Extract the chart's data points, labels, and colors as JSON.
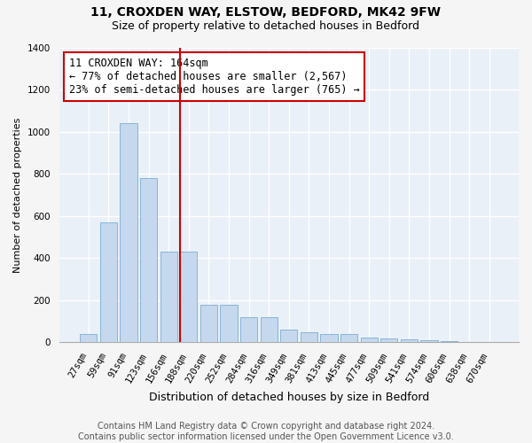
{
  "title_line1": "11, CROXDEN WAY, ELSTOW, BEDFORD, MK42 9FW",
  "title_line2": "Size of property relative to detached houses in Bedford",
  "xlabel": "Distribution of detached houses by size in Bedford",
  "ylabel": "Number of detached properties",
  "categories": [
    "27sqm",
    "59sqm",
    "91sqm",
    "123sqm",
    "156sqm",
    "188sqm",
    "220sqm",
    "252sqm",
    "284sqm",
    "316sqm",
    "349sqm",
    "381sqm",
    "413sqm",
    "445sqm",
    "477sqm",
    "509sqm",
    "541sqm",
    "574sqm",
    "606sqm",
    "638sqm",
    "670sqm"
  ],
  "values": [
    40,
    570,
    1040,
    780,
    430,
    430,
    178,
    178,
    120,
    120,
    60,
    50,
    40,
    40,
    25,
    20,
    15,
    10,
    5,
    4,
    2
  ],
  "bar_color": "#c5d8ee",
  "bar_edge_color": "#7aadd4",
  "bar_width": 0.85,
  "vline_color": "#cc0000",
  "vline_x": 4.55,
  "annotation_text": "11 CROXDEN WAY: 164sqm\n← 77% of detached houses are smaller (2,567)\n23% of semi-detached houses are larger (765) →",
  "annotation_box_color": "#ffffff",
  "annotation_box_edge": "#cc0000",
  "ylim": [
    0,
    1400
  ],
  "yticks": [
    0,
    200,
    400,
    600,
    800,
    1000,
    1200,
    1400
  ],
  "bg_color": "#eaf0f8",
  "grid_color": "#ffffff",
  "footer_text": "Contains HM Land Registry data © Crown copyright and database right 2024.\nContains public sector information licensed under the Open Government Licence v3.0.",
  "title_fontsize": 10,
  "subtitle_fontsize": 9,
  "xlabel_fontsize": 9,
  "ylabel_fontsize": 8,
  "tick_fontsize": 7.5,
  "annotation_fontsize": 8.5,
  "footer_fontsize": 7
}
